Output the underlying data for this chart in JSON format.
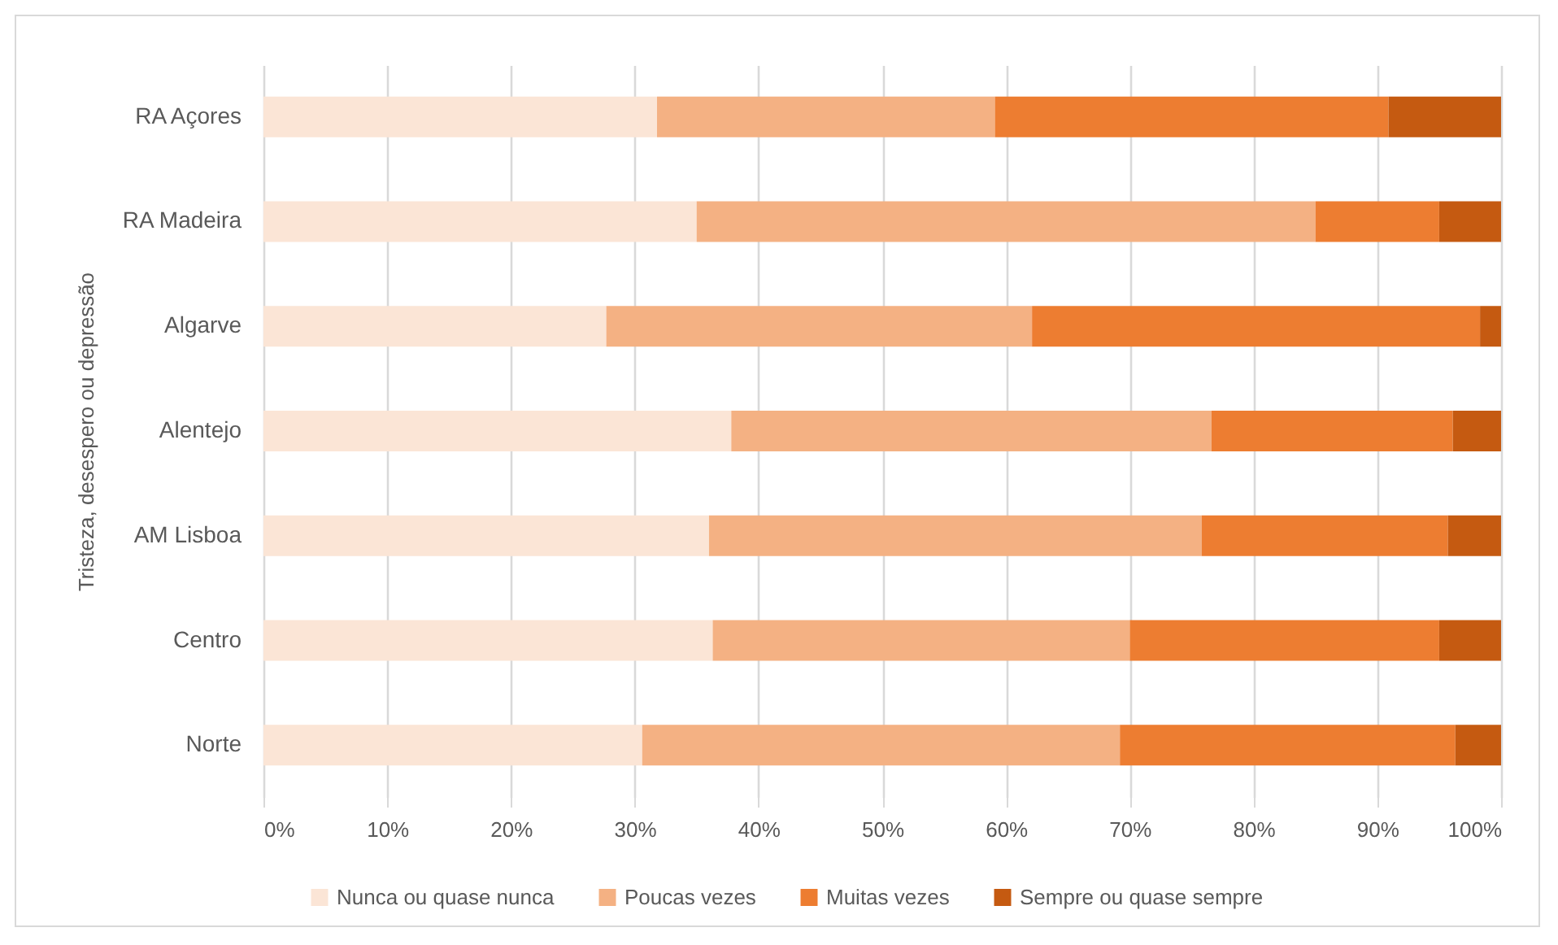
{
  "chart_data": {
    "type": "bar",
    "orientation": "horizontal",
    "stacked": true,
    "ylabel": "Tristeza, desespero ou depressão",
    "categories": [
      "RA Açores",
      "RA Madeira",
      "Algarve",
      "Alentejo",
      "AM Lisboa",
      "Centro",
      "Norte"
    ],
    "series": [
      {
        "name": "Nunca ou quase nunca",
        "color": "#fbe5d6",
        "values": [
          31.8,
          35.0,
          27.7,
          37.8,
          36.0,
          36.3,
          30.6
        ]
      },
      {
        "name": "Poucas vezes",
        "color": "#f4b183",
        "values": [
          27.3,
          50.0,
          34.4,
          38.8,
          39.8,
          33.7,
          38.6
        ]
      },
      {
        "name": "Muitas vezes",
        "color": "#ed7d31",
        "values": [
          31.8,
          10.0,
          36.2,
          19.5,
          19.9,
          25.0,
          27.1
        ]
      },
      {
        "name": "Sempre ou quase sempre",
        "color": "#c55a11",
        "values": [
          9.1,
          5.0,
          1.7,
          3.9,
          4.3,
          5.0,
          3.7
        ]
      }
    ],
    "xlim": [
      0,
      100
    ],
    "xticks": [
      {
        "value": 0,
        "label": "0%"
      },
      {
        "value": 10,
        "label": "10%"
      },
      {
        "value": 20,
        "label": "20%"
      },
      {
        "value": 30,
        "label": "30%"
      },
      {
        "value": 40,
        "label": "40%"
      },
      {
        "value": 50,
        "label": "50%"
      },
      {
        "value": 60,
        "label": "60%"
      },
      {
        "value": 70,
        "label": "70%"
      },
      {
        "value": 80,
        "label": "80%"
      },
      {
        "value": 90,
        "label": "90%"
      },
      {
        "value": 100,
        "label": "100%"
      }
    ],
    "grid": "x",
    "legend": "bottom"
  }
}
